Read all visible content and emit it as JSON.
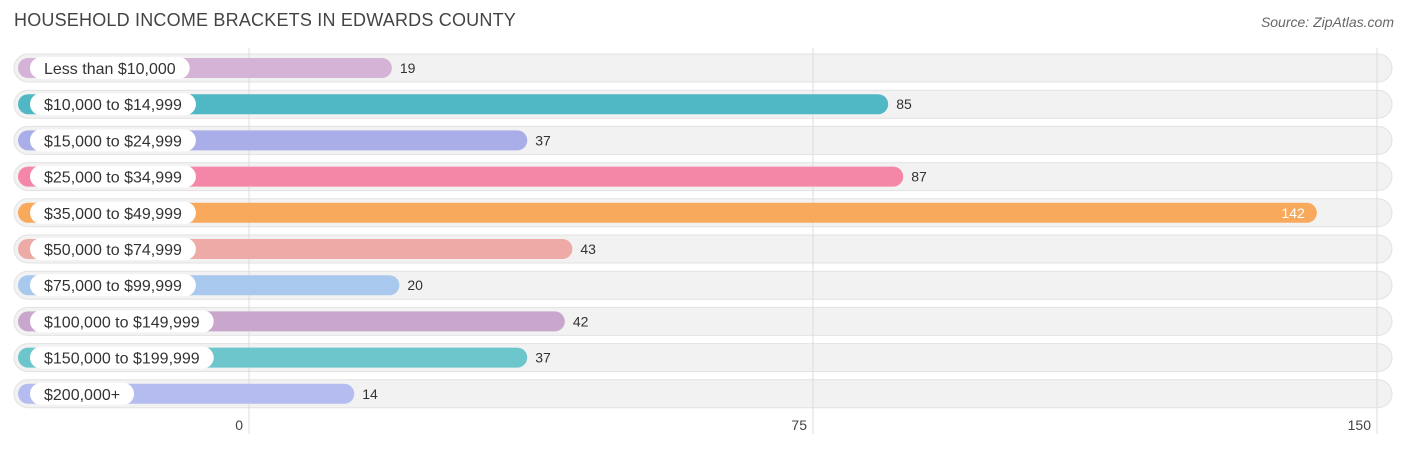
{
  "title": "HOUSEHOLD INCOME BRACKETS IN EDWARDS COUNTY",
  "source": "Source: ZipAtlas.com",
  "chart_data": {
    "type": "bar",
    "orientation": "horizontal",
    "title": "HOUSEHOLD INCOME BRACKETS IN EDWARDS COUNTY",
    "categories": [
      "Less than $10,000",
      "$10,000 to $14,999",
      "$15,000 to $24,999",
      "$25,000 to $34,999",
      "$35,000 to $49,999",
      "$50,000 to $74,999",
      "$75,000 to $99,999",
      "$100,000 to $149,999",
      "$150,000 to $199,999",
      "$200,000+"
    ],
    "values": [
      19,
      85,
      37,
      87,
      142,
      43,
      20,
      42,
      37,
      14
    ],
    "colors": [
      "#d4b3d6",
      "#4fb8c4",
      "#a9aee8",
      "#f487a8",
      "#f8a95c",
      "#eeaaa6",
      "#a8c8ee",
      "#c9a7cd",
      "#6cc6cc",
      "#b5bdf0"
    ],
    "xlim": [
      0,
      150
    ],
    "xticks": [
      0,
      75,
      150
    ],
    "grid": true
  }
}
